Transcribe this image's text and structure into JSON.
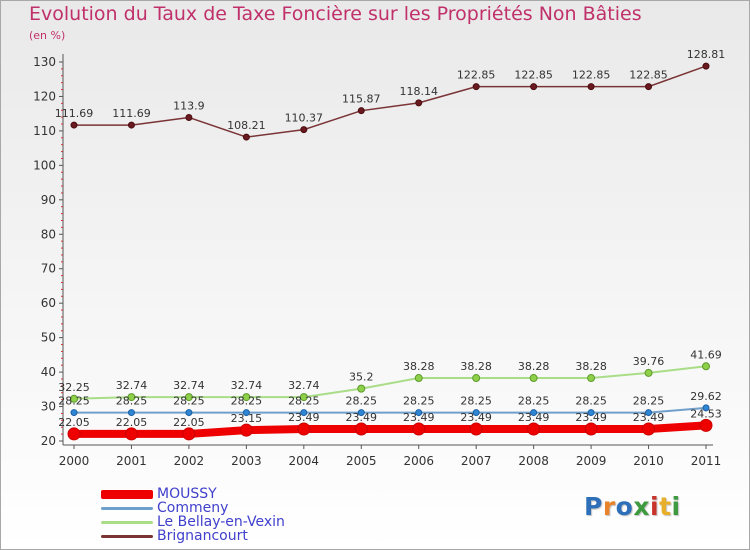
{
  "title": "Evolution du Taux de Taxe Foncière sur les Propriétés Non Bâties",
  "unit_label": "(en %)",
  "chart_data": {
    "type": "line",
    "x": [
      "2000",
      "2001",
      "2002",
      "2003",
      "2004",
      "2005",
      "2006",
      "2007",
      "2008",
      "2009",
      "2010",
      "2011"
    ],
    "ylim": [
      20,
      130
    ],
    "yticks": [
      20,
      30,
      40,
      50,
      60,
      70,
      80,
      90,
      100,
      110,
      120,
      130
    ],
    "grid": false,
    "legend": "bottom-left",
    "series": [
      {
        "name": "MOUSSY",
        "color": "#ee0000",
        "values": [
          22.05,
          22.05,
          22.05,
          23.15,
          23.49,
          23.49,
          23.49,
          23.49,
          23.49,
          23.49,
          23.49,
          24.53
        ],
        "labels": [
          "22.05",
          "22.05",
          "22.05",
          "23.15",
          "23.49",
          "23.49",
          "23.49",
          "23.49",
          "23.49",
          "23.49",
          "23.49",
          "24.53"
        ]
      },
      {
        "name": "Commeny",
        "color": "#6f9fcb",
        "values": [
          28.25,
          28.25,
          28.25,
          28.25,
          28.25,
          28.25,
          28.25,
          28.25,
          28.25,
          28.25,
          28.25,
          29.62
        ],
        "labels": [
          "28.25",
          "28.25",
          "28.25",
          "28.25",
          "28.25",
          "28.25",
          "28.25",
          "28.25",
          "28.25",
          "28.25",
          "28.25",
          "29.62"
        ]
      },
      {
        "name": "Le Bellay-en-Vexin",
        "color": "#aadd88",
        "values": [
          32.25,
          32.74,
          32.74,
          32.74,
          32.74,
          35.2,
          38.28,
          38.28,
          38.28,
          38.28,
          39.76,
          41.69
        ],
        "labels": [
          "32.25",
          "32.74",
          "32.74",
          "32.74",
          "32.74",
          "35.2",
          "38.28",
          "38.28",
          "38.28",
          "38.28",
          "39.76",
          "41.69"
        ]
      },
      {
        "name": "Brignancourt",
        "color": "#7a3436",
        "values": [
          111.69,
          111.69,
          113.9,
          108.21,
          110.37,
          115.87,
          118.14,
          122.85,
          122.85,
          122.85,
          122.85,
          128.81
        ],
        "labels": [
          "111.69",
          "111.69",
          "113.9",
          "108.21",
          "110.37",
          "115.87",
          "118.14",
          "122.85",
          "122.85",
          "122.85",
          "122.85",
          "128.81"
        ]
      }
    ]
  },
  "legend_items": [
    {
      "name": "MOUSSY",
      "color": "#ee0000"
    },
    {
      "name": "Commeny",
      "color": "#6f9fcb"
    },
    {
      "name": "Le Bellay-en-Vexin",
      "color": "#aadd88"
    },
    {
      "name": "Brignancourt",
      "color": "#7a3436"
    }
  ],
  "logo": {
    "text": "Proxiti",
    "letter_colors": [
      "#2d6fb8",
      "#e8832a",
      "#2d6fb8",
      "#3e9a3e",
      "#c8332b",
      "#e8b02a",
      "#3e9a3e"
    ]
  }
}
